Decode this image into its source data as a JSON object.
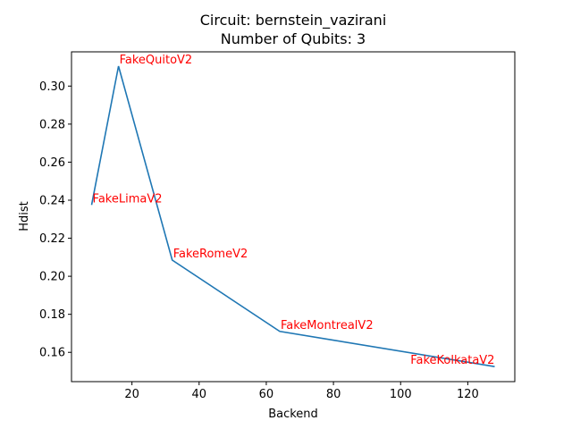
{
  "chart_data": {
    "type": "line",
    "title": "Circuit: bernstein_vazirani",
    "subtitle": "Number of Qubits: 3",
    "xlabel": "Backend",
    "ylabel": "Hdist",
    "xlim": [
      2,
      134
    ],
    "ylim": [
      0.1446,
      0.318
    ],
    "xticks": [
      20,
      40,
      60,
      80,
      100,
      120
    ],
    "yticks": [
      0.16,
      0.18,
      0.2,
      0.22,
      0.24,
      0.26,
      0.28,
      0.3
    ],
    "ytick_labels": [
      "0.16",
      "0.18",
      "0.20",
      "0.22",
      "0.24",
      "0.26",
      "0.28",
      "0.30"
    ],
    "grid": false,
    "series": [
      {
        "x": [
          8,
          16,
          32,
          64,
          128
        ],
        "y": [
          0.2375,
          0.3105,
          0.2085,
          0.171,
          0.1525
        ]
      }
    ],
    "annotations": [
      {
        "text": "FakeLimaV2",
        "x": 8,
        "y": 0.2375
      },
      {
        "text": "FakeQuitoV2",
        "x": 16,
        "y": 0.3105
      },
      {
        "text": "FakeRomeV2",
        "x": 32,
        "y": 0.2085
      },
      {
        "text": "FakeMontrealV2",
        "x": 64,
        "y": 0.171
      },
      {
        "text": "FakeKolkataV2",
        "x": 128,
        "y": 0.1525,
        "align": "right"
      }
    ],
    "colors": {
      "line": "#1f77b4",
      "annotation": "#ff0000"
    }
  }
}
